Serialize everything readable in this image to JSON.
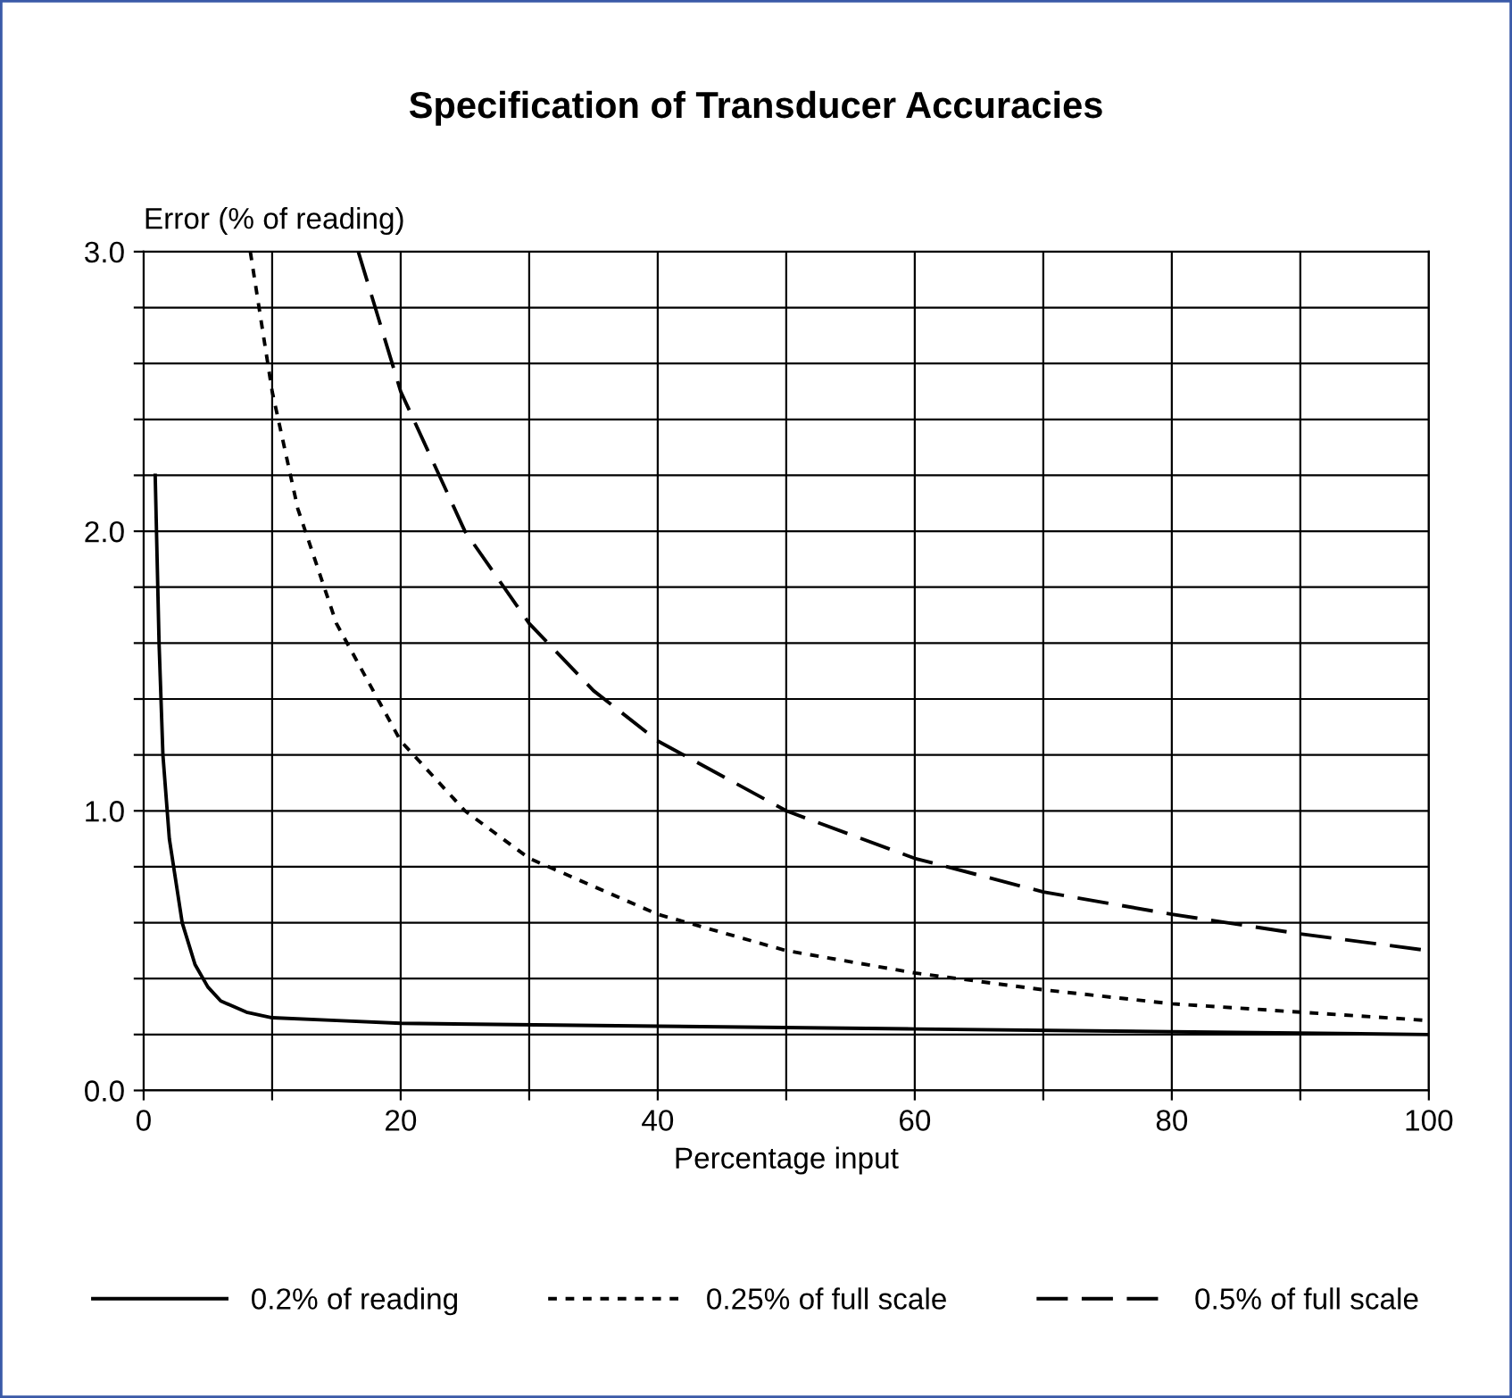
{
  "chart_data": {
    "type": "line",
    "title": "Specification of Transducer Accuracies",
    "xlabel": "Percentage input",
    "ylabel": "Error (% of reading)",
    "xlim": [
      0,
      100
    ],
    "ylim": [
      0,
      3
    ],
    "xticks": [
      0,
      {
        "value": 10,
        "label": null
      },
      20,
      {
        "value": 30,
        "label": null
      },
      40,
      {
        "value": 50,
        "label": null
      },
      60,
      {
        "value": 70,
        "label": null
      },
      80,
      {
        "value": 90,
        "label": null
      },
      100
    ],
    "yticks": [
      {
        "value": 0,
        "label": "0.0"
      },
      {
        "value": 0.2,
        "label": null
      },
      {
        "value": 0.4,
        "label": null
      },
      {
        "value": 0.6,
        "label": null
      },
      {
        "value": 0.8,
        "label": null
      },
      {
        "value": 1,
        "label": "1.0"
      },
      {
        "value": 1.2,
        "label": null
      },
      {
        "value": 1.4,
        "label": null
      },
      {
        "value": 1.6,
        "label": null
      },
      {
        "value": 1.8,
        "label": null
      },
      {
        "value": 2,
        "label": "2.0"
      },
      {
        "value": 2.2,
        "label": null
      },
      {
        "value": 2.4,
        "label": null
      },
      {
        "value": 2.6,
        "label": null
      },
      {
        "value": 2.8,
        "label": null
      },
      {
        "value": 3,
        "label": "3.0"
      }
    ],
    "grid": true,
    "legend": "bottom",
    "marker": "none",
    "series": [
      {
        "name": "0.2% of reading",
        "color": "#000000",
        "line_style": "solid",
        "x": [
          0.9,
          1.2,
          1.5,
          2,
          3,
          4,
          5,
          6,
          8,
          10,
          15,
          20,
          40,
          60,
          80,
          100
        ],
        "values": [
          2.2,
          1.6,
          1.2,
          0.9,
          0.6,
          0.45,
          0.37,
          0.32,
          0.28,
          0.26,
          0.25,
          0.24,
          0.23,
          0.22,
          0.21,
          0.2
        ]
      },
      {
        "name": "0.25% of full scale",
        "color": "#000000",
        "line_style": "dotted",
        "x": [
          8.3,
          10,
          12,
          15,
          20,
          25,
          30,
          40,
          50,
          60,
          70,
          80,
          90,
          100
        ],
        "values": [
          3.0,
          2.5,
          2.08,
          1.67,
          1.25,
          1.0,
          0.83,
          0.63,
          0.5,
          0.42,
          0.36,
          0.31,
          0.28,
          0.25
        ]
      },
      {
        "name": "0.5% of full scale",
        "color": "#000000",
        "line_style": "dashed",
        "x": [
          16.7,
          20,
          25,
          30,
          35,
          40,
          50,
          60,
          70,
          80,
          90,
          100
        ],
        "values": [
          3.0,
          2.5,
          2.0,
          1.67,
          1.43,
          1.25,
          1.0,
          0.83,
          0.71,
          0.63,
          0.56,
          0.5
        ]
      }
    ]
  }
}
